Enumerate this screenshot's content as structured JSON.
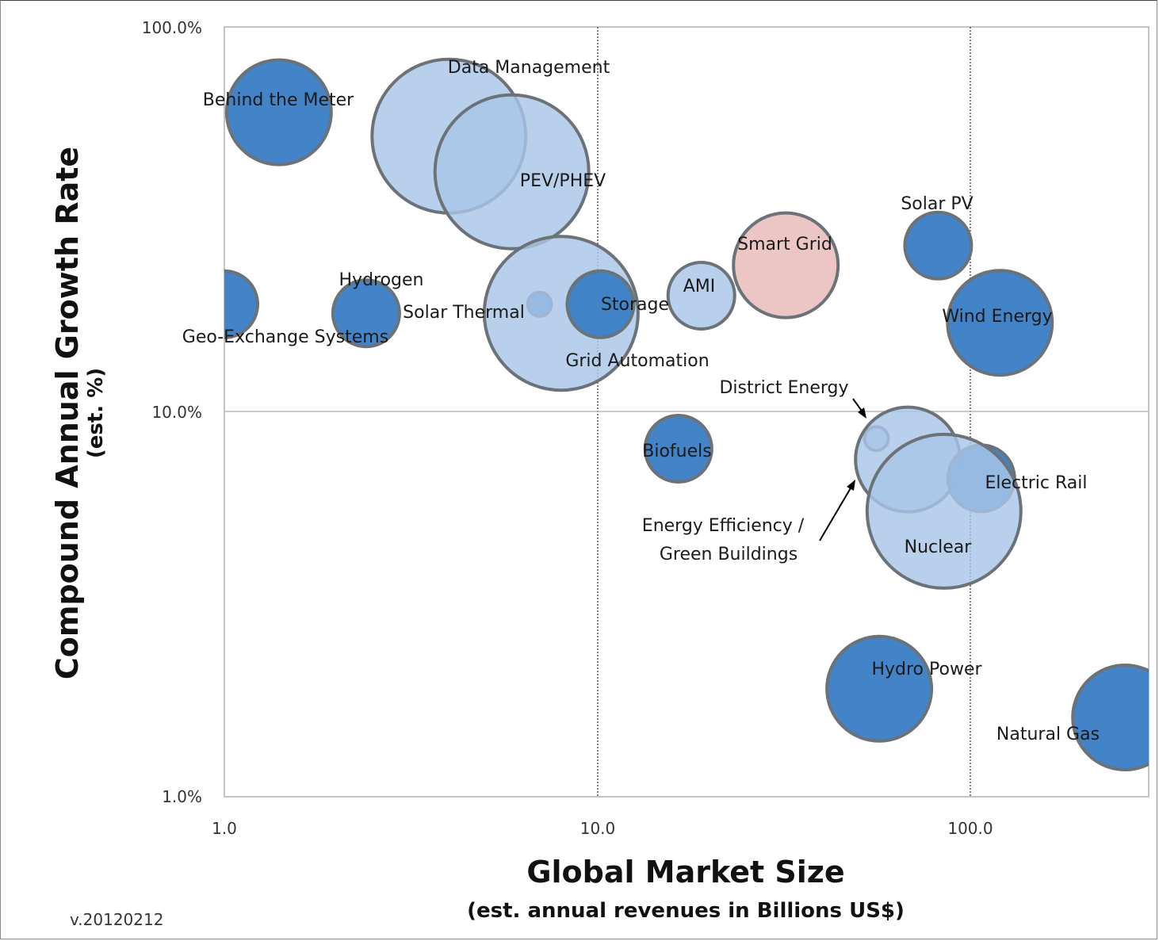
{
  "chart_data": {
    "type": "bubble",
    "title": "",
    "xlabel": "Global Market Size",
    "xlabel_sub": "(est. annual  revenues in Billions US$)",
    "ylabel": "Compound Annual Growth Rate",
    "ylabel_sub": "(est. %)",
    "x_scale": "log",
    "y_scale": "log",
    "xlim": [
      1.0,
      240.0
    ],
    "ylim": [
      1.0,
      100.0
    ],
    "x_ticks": [
      "1.0",
      "10.0",
      "100.0"
    ],
    "y_ticks": [
      "1.0%",
      "10.0%",
      "100.0%"
    ],
    "grid": "major gridlines at 10.0 and 100.0 (x), 10.0% (y)",
    "bubbles": [
      {
        "name": "Behind the Meter",
        "x": 1.4,
        "y": 60.0,
        "r": "medium",
        "color": "#3e82c6",
        "label": "Behind the Meter"
      },
      {
        "name": "Data Management",
        "x": 4.0,
        "y": 52.0,
        "r": "large",
        "color": "#a9c6e8",
        "label": "Data Management"
      },
      {
        "name": "PEV/PHEV",
        "x": 5.9,
        "y": 42.0,
        "r": "large",
        "color": "#a9c6e8",
        "label": "PEV/PHEV"
      },
      {
        "name": "Solar PV",
        "x": 82.0,
        "y": 27.0,
        "r": "small",
        "color": "#3e82c6",
        "label": "Solar PV"
      },
      {
        "name": "Smart Grid",
        "x": 32.0,
        "y": 24.0,
        "r": "medium",
        "color": "#e6b9b8",
        "label": "Smart Grid"
      },
      {
        "name": "AMI",
        "x": 19.0,
        "y": 20.0,
        "r": "small",
        "color": "#a9c6e8",
        "label": "AMI"
      },
      {
        "name": "Geo-Exchange Systems",
        "x": 1.0,
        "y": 19.0,
        "r": "small",
        "color": "#3e82c6",
        "label": "Geo-Exchange Systems"
      },
      {
        "name": "Hydrogen",
        "x": 2.4,
        "y": 18.0,
        "r": "small",
        "color": "#3e82c6",
        "label": "Hydrogen"
      },
      {
        "name": "Solar Thermal",
        "x": 7.0,
        "y": 19.0,
        "r": "tiny",
        "color": "#3e82c6",
        "label": "Solar Thermal"
      },
      {
        "name": "Grid Automation",
        "x": 8.0,
        "y": 18.0,
        "r": "large",
        "color": "#a9c6e8",
        "label": "Grid Automation"
      },
      {
        "name": "Storage",
        "x": 10.2,
        "y": 19.0,
        "r": "small",
        "color": "#3e82c6",
        "label": "Storage"
      },
      {
        "name": "Wind Energy",
        "x": 120.0,
        "y": 17.0,
        "r": "medium",
        "color": "#3e82c6",
        "label": "Wind Energy"
      },
      {
        "name": "District Energy",
        "x": 56.0,
        "y": 8.5,
        "r": "tiny",
        "color": "#a9c6e8",
        "label": "District Energy"
      },
      {
        "name": "Biofuels",
        "x": 16.5,
        "y": 8.0,
        "r": "small",
        "color": "#3e82c6",
        "label": "Biofuels"
      },
      {
        "name": "Energy Efficiency / Green Buildings",
        "x": 68.0,
        "y": 7.5,
        "r": "medium",
        "color": "#a9c6e8",
        "label": "Energy Efficiency / Green Buildings"
      },
      {
        "name": "Electric Rail",
        "x": 107.0,
        "y": 6.7,
        "r": "small",
        "color": "#3e82c6",
        "label": "Electric Rail"
      },
      {
        "name": "Nuclear",
        "x": 85.0,
        "y": 5.5,
        "r": "large",
        "color": "#a9c6e8",
        "label": "Nuclear"
      },
      {
        "name": "Hydro Power",
        "x": 57.0,
        "y": 1.9,
        "r": "medium",
        "color": "#3e82c6",
        "label": "Hydro Power"
      },
      {
        "name": "Natural Gas",
        "x": 260.0,
        "y": 1.6,
        "r": "medium",
        "color": "#3e82c6",
        "label": "Natural Gas"
      }
    ]
  },
  "labels": {
    "behind_the_meter": "Behind the Meter",
    "data_management": "Data Management",
    "pev_phev": "PEV/PHEV",
    "solar_pv": "Solar PV",
    "smart_grid": "Smart Grid",
    "ami": "AMI",
    "hydrogen": "Hydrogen",
    "solar_thermal": "Solar Thermal",
    "geo_exchange": "Geo-Exchange Systems",
    "storage": "Storage",
    "grid_automation": "Grid Automation",
    "wind_energy": "Wind Energy",
    "district_energy": "District Energy",
    "biofuels": "Biofuels",
    "electric_rail": "Electric Rail",
    "energy_efficiency_1": "Energy Efficiency /",
    "energy_efficiency_2": "Green Buildings",
    "nuclear": "Nuclear",
    "hydro_power": "Hydro Power",
    "natural_gas": "Natural Gas"
  },
  "axes": {
    "x_title": "Global Market Size",
    "x_subtitle": "(est. annual  revenues in Billions US$)",
    "y_title": "Compound Annual Growth Rate",
    "y_subtitle": "(est. %)",
    "x_tick_1": "1.0",
    "x_tick_10": "10.0",
    "x_tick_100": "100.0",
    "y_tick_1": "1.0%",
    "y_tick_10": "10.0%",
    "y_tick_100": "100.0%"
  },
  "version": "v.20120212",
  "colors": {
    "dark_blue": "#3e82c6",
    "light_blue": "#a9c6e8",
    "pink": "#e6b9b8",
    "bubble_stroke": "#6b7278"
  }
}
